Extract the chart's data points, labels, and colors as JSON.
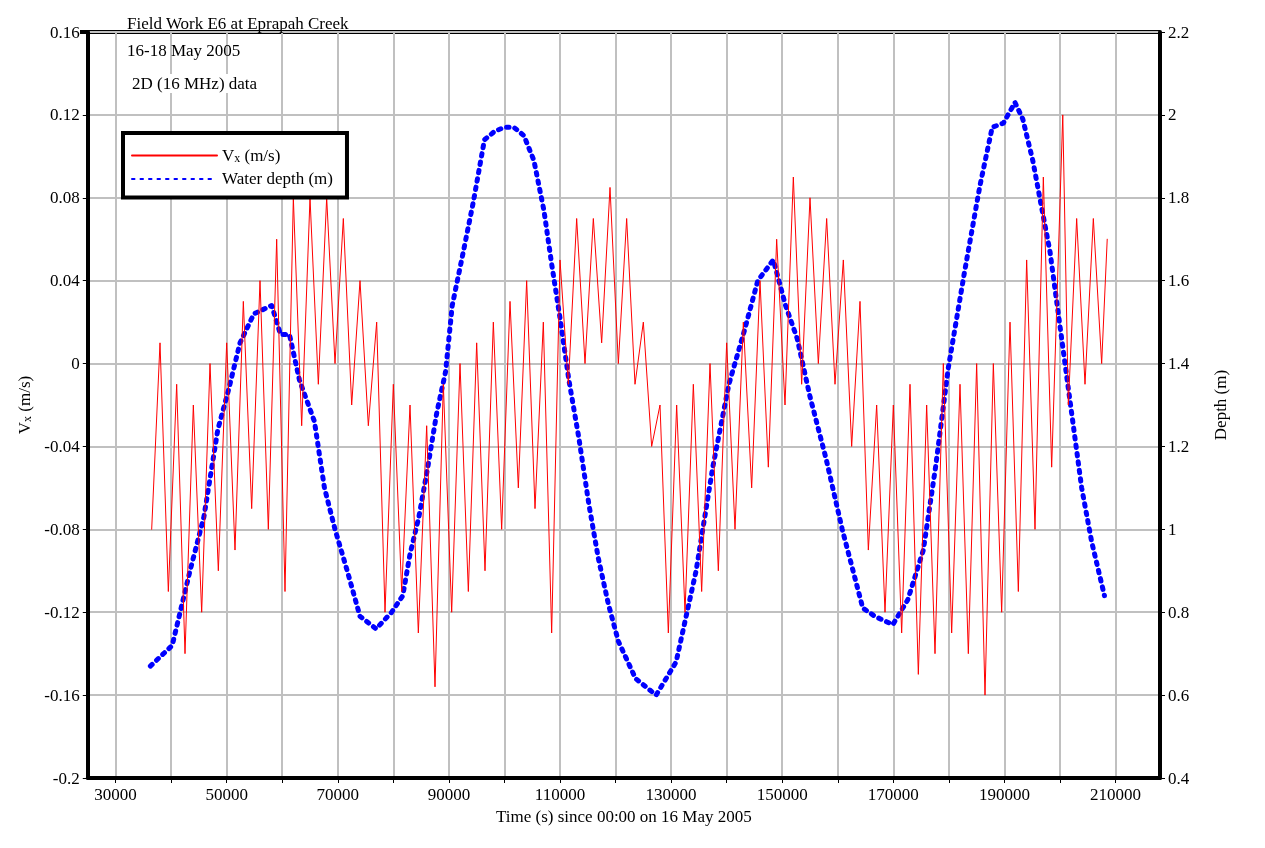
{
  "chart_data": {
    "type": "line",
    "title": "Field Work E6 at Eprapah Creek",
    "subtitle": "16-18 May 2005",
    "annotations": [
      "2D (16 MHz) data"
    ],
    "xlabel": "Time (s) since 00:00 on 16 May 2005",
    "ylabel": "V$_{x}$ (m/s)",
    "y2label": "Depth (m)",
    "xlim": [
      25000,
      218000
    ],
    "xticks": [
      30000,
      {
        "value": 40000,
        "label": null
      },
      50000,
      {
        "value": 60000,
        "label": null
      },
      70000,
      {
        "value": 80000,
        "label": null
      },
      90000,
      {
        "value": 100000,
        "label": null
      },
      110000,
      {
        "value": 120000,
        "label": null
      },
      130000,
      {
        "value": 140000,
        "label": null
      },
      150000,
      {
        "value": 160000,
        "label": null
      },
      170000,
      {
        "value": 180000,
        "label": null
      },
      190000,
      {
        "value": 200000,
        "label": null
      },
      210000
    ],
    "ylim": [
      -0.2,
      0.16
    ],
    "yticks": [
      -0.2,
      -0.16,
      -0.12,
      -0.08,
      -0.04,
      0,
      0.04,
      0.08,
      0.12,
      0.16
    ],
    "y2lim": [
      0.4,
      2.2
    ],
    "y2ticks": [
      0.4,
      0.6,
      0.8,
      1,
      1.2,
      1.4,
      1.6,
      1.8,
      2,
      2.2
    ],
    "grid": true,
    "legend": "top left",
    "marker": "none",
    "series": [
      {
        "name": "V$_{x}$ (m/s)",
        "color": "#ff0000",
        "line_style": "solid",
        "x": [
          36500,
          38000,
          39500,
          41000,
          42500,
          44000,
          45500,
          47000,
          48500,
          50000,
          51500,
          53000,
          54500,
          56000,
          57500,
          59000,
          60500,
          62000,
          63500,
          65000,
          66500,
          68000,
          69500,
          71000,
          72500,
          74000,
          75500,
          77000,
          78500,
          80000,
          81500,
          83000,
          84500,
          86000,
          87500,
          89000,
          90500,
          92000,
          93500,
          95000,
          96500,
          98000,
          99500,
          101000,
          102500,
          104000,
          105500,
          107000,
          108500,
          110000,
          111500,
          113000,
          114500,
          116000,
          117500,
          119000,
          120500,
          122000,
          123500,
          125000,
          126500,
          128000,
          129500,
          131000,
          132500,
          134000,
          135500,
          137000,
          138500,
          140000,
          141500,
          143000,
          144500,
          146000,
          147500,
          149000,
          150500,
          152000,
          153500,
          155000,
          156500,
          158000,
          159500,
          161000,
          162500,
          164000,
          165500,
          167000,
          168500,
          170000,
          171500,
          173000,
          174500,
          176000,
          177500,
          179000,
          180500,
          182000,
          183500,
          185000,
          186500,
          188000,
          189500,
          191000,
          192500,
          194000,
          195500,
          197000,
          198500,
          200500,
          201500,
          203000,
          204500,
          206000,
          207500,
          208500
        ],
        "values": [
          -0.08,
          0.01,
          -0.11,
          -0.01,
          -0.14,
          -0.02,
          -0.12,
          0.0,
          -0.1,
          0.01,
          -0.09,
          0.03,
          -0.07,
          0.04,
          -0.08,
          0.06,
          -0.11,
          0.08,
          -0.03,
          0.08,
          -0.01,
          0.08,
          0.0,
          0.07,
          -0.02,
          0.04,
          -0.03,
          0.02,
          -0.12,
          -0.01,
          -0.11,
          -0.02,
          -0.13,
          -0.03,
          -0.156,
          -0.01,
          -0.12,
          0.0,
          -0.11,
          0.01,
          -0.1,
          0.02,
          -0.08,
          0.03,
          -0.06,
          0.04,
          -0.07,
          0.02,
          -0.13,
          0.05,
          -0.01,
          0.07,
          0.0,
          0.07,
          0.01,
          0.085,
          0.0,
          0.07,
          -0.01,
          0.02,
          -0.04,
          -0.02,
          -0.13,
          -0.02,
          -0.12,
          -0.01,
          -0.11,
          0.0,
          -0.1,
          0.01,
          -0.08,
          0.02,
          -0.06,
          0.04,
          -0.05,
          0.06,
          -0.02,
          0.09,
          -0.01,
          0.08,
          0.0,
          0.07,
          -0.01,
          0.05,
          -0.04,
          0.03,
          -0.09,
          -0.02,
          -0.12,
          -0.02,
          -0.13,
          -0.01,
          -0.15,
          -0.02,
          -0.14,
          0.0,
          -0.13,
          -0.01,
          -0.14,
          0.0,
          -0.16,
          0.0,
          -0.12,
          0.02,
          -0.11,
          0.05,
          -0.08,
          0.09,
          -0.05,
          0.12,
          -0.02,
          0.07,
          -0.01,
          0.07,
          0.0,
          0.06
        ]
      },
      {
        "name": "Water depth (m)",
        "color": "#0000ff",
        "line_style": "dotted",
        "axis": "y2",
        "x": [
          36260,
          40200,
          43400,
          45900,
          48400,
          50400,
          52400,
          54900,
          58100,
          59700,
          61300,
          63100,
          65800,
          67600,
          69500,
          71700,
          74000,
          76900,
          79700,
          81700,
          83000,
          84600,
          86200,
          87800,
          89400,
          90600,
          92600,
          94400,
          96400,
          98200,
          100000,
          101700,
          103500,
          105300,
          107100,
          108500,
          110000,
          111600,
          113400,
          115200,
          116900,
          118700,
          120500,
          123600,
          127300,
          130900,
          134500,
          137500,
          140400,
          143200,
          145600,
          148400,
          150600,
          152700,
          155000,
          157900,
          160800,
          164500,
          166700,
          169900,
          172600,
          175400,
          177600,
          179900,
          182800,
          185600,
          187800,
          189800,
          191900,
          193300,
          195100,
          196500,
          198200,
          199600,
          201000,
          202400,
          203900,
          205700,
          208000
        ],
        "values": [
          0.67,
          0.72,
          0.9,
          1.03,
          1.24,
          1.34,
          1.45,
          1.52,
          1.54,
          1.47,
          1.47,
          1.36,
          1.26,
          1.1,
          1.0,
          0.9,
          0.79,
          0.76,
          0.8,
          0.84,
          0.94,
          1.03,
          1.15,
          1.28,
          1.38,
          1.54,
          1.67,
          1.79,
          1.94,
          1.96,
          1.97,
          1.97,
          1.95,
          1.89,
          1.77,
          1.64,
          1.51,
          1.36,
          1.22,
          1.06,
          0.93,
          0.82,
          0.73,
          0.64,
          0.6,
          0.68,
          0.9,
          1.15,
          1.35,
          1.48,
          1.6,
          1.65,
          1.54,
          1.46,
          1.32,
          1.17,
          1.0,
          0.81,
          0.79,
          0.77,
          0.83,
          0.95,
          1.15,
          1.39,
          1.62,
          1.83,
          1.97,
          1.98,
          2.03,
          1.99,
          1.89,
          1.79,
          1.67,
          1.53,
          1.39,
          1.25,
          1.1,
          0.97,
          0.84
        ]
      }
    ]
  }
}
